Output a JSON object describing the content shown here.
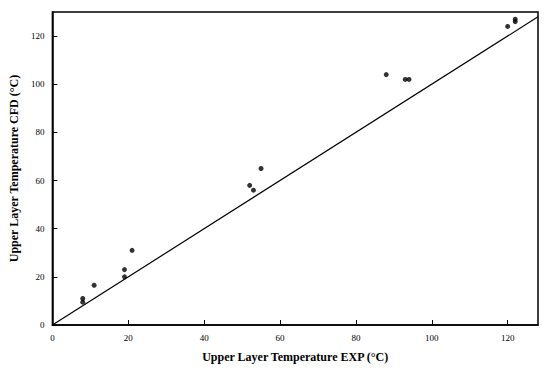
{
  "chart_data": {
    "type": "scatter",
    "x_label": "Upper Layer Temperature EXP (°C)",
    "y_label": "Upper Layer Temperature CFD (°C)",
    "xlim": [
      0,
      128
    ],
    "ylim": [
      0,
      130
    ],
    "xticks": [
      0,
      20,
      40,
      60,
      80,
      100,
      120
    ],
    "yticks": [
      0,
      20,
      40,
      60,
      80,
      100,
      120
    ],
    "grid": false,
    "series": [
      {
        "type": "scatter",
        "color": "#000000",
        "marker": "circle",
        "x": [
          8,
          8,
          11,
          19,
          19,
          21,
          52,
          53,
          55,
          88,
          93,
          94,
          120,
          122,
          122
        ],
        "values": [
          9.5,
          11,
          16.5,
          20,
          23,
          31,
          58,
          56,
          65,
          104,
          102,
          102,
          124,
          126,
          127
        ]
      },
      {
        "type": "line",
        "color": "#000000",
        "line_style": "solid",
        "x": [
          0,
          128
        ],
        "values": [
          0,
          128
        ]
      }
    ]
  }
}
